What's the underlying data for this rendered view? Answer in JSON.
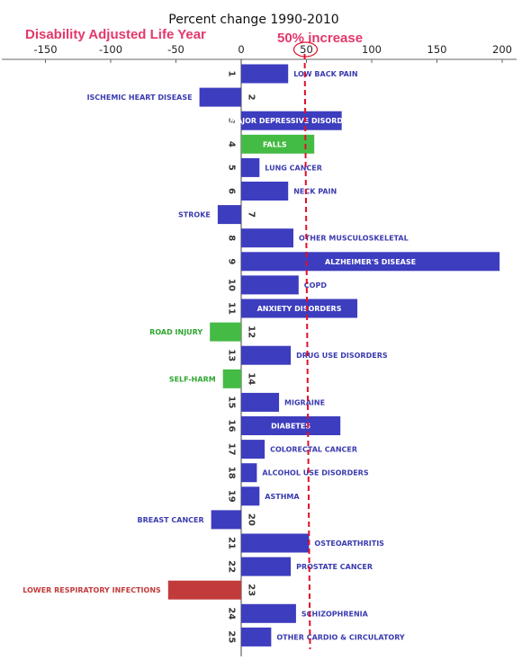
{
  "chart_data": {
    "type": "bar",
    "orientation": "horizontal",
    "title": "Percent change 1990-2010",
    "subtitle": "Disability Adjusted Life Year",
    "annotation": "50% increase",
    "reference_line": 50,
    "xlim": [
      -180,
      200
    ],
    "xticks": [
      "-150",
      "-100",
      "-50",
      "0",
      "50",
      "100",
      "150",
      "200"
    ],
    "xtick_values": [
      -150,
      -100,
      -50,
      0,
      50,
      100,
      150,
      200
    ],
    "colors": {
      "increase": "#3d3dbf",
      "green": "#44bb44",
      "red": "#c23b3b",
      "reference": "#e0102a",
      "title": "#e4386a"
    },
    "bars": [
      {
        "rank": "1",
        "label": "LOW BACK PAIN",
        "value": 36,
        "color": "blue"
      },
      {
        "rank": "2",
        "label": "ISCHEMIC HEART DISEASE",
        "value": -32,
        "color": "blue"
      },
      {
        "rank": "3",
        "label": "MAJOR DEPRESSIVE DISORDER",
        "value": 77,
        "color": "blue"
      },
      {
        "rank": "4",
        "label": "FALLS",
        "value": 56,
        "color": "green"
      },
      {
        "rank": "5",
        "label": "LUNG CANCER",
        "value": 14,
        "color": "blue"
      },
      {
        "rank": "6",
        "label": "NECK PAIN",
        "value": 36,
        "color": "blue"
      },
      {
        "rank": "7",
        "label": "STROKE",
        "value": -18,
        "color": "blue"
      },
      {
        "rank": "8",
        "label": "OTHER MUSCULOSKELETAL",
        "value": 40,
        "color": "blue"
      },
      {
        "rank": "9",
        "label": "ALZHEIMER'S DISEASE",
        "value": 198,
        "color": "blue"
      },
      {
        "rank": "10",
        "label": "COPD",
        "value": 44,
        "color": "blue"
      },
      {
        "rank": "11",
        "label": "ANXIETY DISORDERS",
        "value": 89,
        "color": "blue"
      },
      {
        "rank": "12",
        "label": "ROAD INJURY",
        "value": -24,
        "color": "green"
      },
      {
        "rank": "13",
        "label": "DRUG USE DISORDERS",
        "value": 38,
        "color": "blue"
      },
      {
        "rank": "14",
        "label": "SELF-HARM",
        "value": -14,
        "color": "green"
      },
      {
        "rank": "15",
        "label": "MIGRAINE",
        "value": 29,
        "color": "blue"
      },
      {
        "rank": "16",
        "label": "DIABETES",
        "value": 76,
        "color": "blue"
      },
      {
        "rank": "17",
        "label": "COLORECTAL CANCER",
        "value": 18,
        "color": "blue"
      },
      {
        "rank": "18",
        "label": "ALCOHOL USE DISORDERS",
        "value": 12,
        "color": "blue"
      },
      {
        "rank": "19",
        "label": "ASTHMA",
        "value": 14,
        "color": "blue"
      },
      {
        "rank": "20",
        "label": "BREAST CANCER",
        "value": -23,
        "color": "blue"
      },
      {
        "rank": "21",
        "label": "OSTEOARTHRITIS",
        "value": 52,
        "color": "blue"
      },
      {
        "rank": "22",
        "label": "PROSTATE CANCER",
        "value": 38,
        "color": "blue"
      },
      {
        "rank": "23",
        "label": "LOWER RESPIRATORY INFECTIONS",
        "value": -56,
        "color": "red"
      },
      {
        "rank": "24",
        "label": "SCHIZOPHRENIA",
        "value": 42,
        "color": "blue"
      },
      {
        "rank": "25",
        "label": "OTHER CARDIO & CIRCULATORY",
        "value": 23,
        "color": "blue"
      }
    ]
  }
}
